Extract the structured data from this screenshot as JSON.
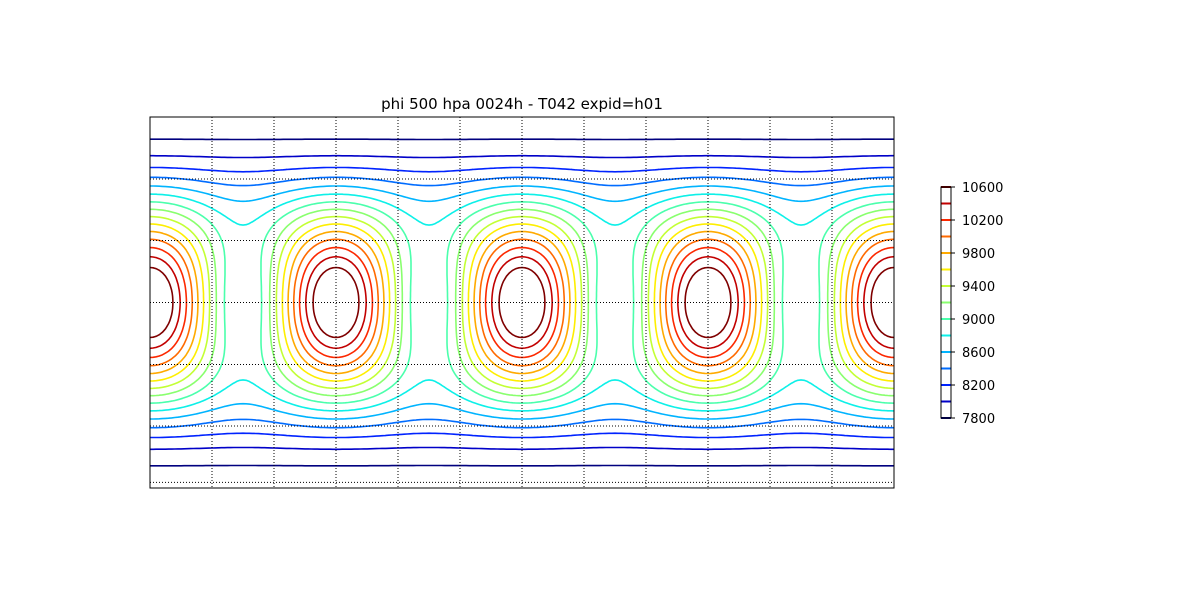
{
  "chart_data": {
    "type": "contour",
    "title": "phi 500 hpa 0024h - T042 expid=h01",
    "colormap": "jet",
    "grid": "on (dotted)",
    "legend": "colorbar right",
    "levels": [
      7800,
      8000,
      8200,
      8400,
      8600,
      8800,
      9000,
      9200,
      9400,
      9600,
      9800,
      10000,
      10200,
      10400,
      10600
    ],
    "colorbar_tick_labels": [
      "10600",
      "10200",
      "9800",
      "9400",
      "9000",
      "8600",
      "8200",
      "7800"
    ],
    "level_colors": [
      "#00007f",
      "#0000c8",
      "#0023ff",
      "#006cff",
      "#00b4ff",
      "#0df0e8",
      "#4bffac",
      "#89ff6e",
      "#c3ff34",
      "#feee00",
      "#ffaa00",
      "#ff6a00",
      "#fc2800",
      "#c20000",
      "#7f0000"
    ]
  }
}
